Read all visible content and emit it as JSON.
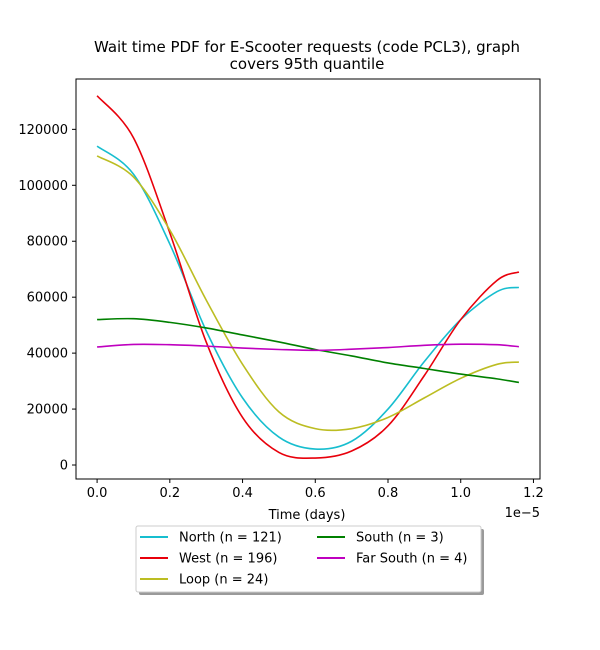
{
  "chart_data": {
    "type": "line",
    "title_line1": "Wait time PDF for E-Scooter  requests (code PCL3), graph",
    "title_line2": "covers 95th quantile",
    "xlabel": "Time (days)",
    "x_offset_text": "1e−5",
    "ylabel": "",
    "xlim": [
      -0.058,
      1.218
    ],
    "ylim": [
      -5000,
      138000
    ],
    "x_ticks": [
      0.0,
      0.2,
      0.4,
      0.6,
      0.8,
      1.0,
      1.2
    ],
    "x_tick_labels": [
      "0.0",
      "0.2",
      "0.4",
      "0.6",
      "0.8",
      "1.0",
      "1.2"
    ],
    "y_ticks": [
      0,
      20000,
      40000,
      60000,
      80000,
      100000,
      120000
    ],
    "y_tick_labels": [
      "0",
      "20000",
      "40000",
      "60000",
      "80000",
      "100000",
      "120000"
    ],
    "x": [
      0.0,
      0.1,
      0.2,
      0.3,
      0.4,
      0.5,
      0.6,
      0.7,
      0.8,
      0.9,
      1.0,
      1.1,
      1.16
    ],
    "series": [
      {
        "name": "North (n = 121)",
        "color": "#17becf",
        "values": [
          114000,
          104000,
          79000,
          48000,
          24000,
          10000,
          5700,
          8500,
          20000,
          37000,
          52000,
          62000,
          63500
        ]
      },
      {
        "name": "West (n = 196)",
        "color": "#e8000b",
        "values": [
          132000,
          117000,
          83000,
          44000,
          17000,
          4500,
          2500,
          5000,
          14000,
          32000,
          52000,
          66000,
          69000
        ]
      },
      {
        "name": "Loop (n = 24)",
        "color": "#bcbd22",
        "values": [
          110500,
          103000,
          84000,
          59000,
          36000,
          19000,
          13000,
          13000,
          17000,
          24000,
          31000,
          36000,
          36800
        ]
      },
      {
        "name": "South (n = 3)",
        "color": "#008000",
        "values": [
          52000,
          52300,
          51000,
          49000,
          46500,
          44000,
          41300,
          39000,
          36500,
          34500,
          32500,
          30800,
          29500
        ]
      },
      {
        "name": "Far South (n = 4)",
        "color": "#bf00bf",
        "values": [
          42200,
          43100,
          43000,
          42500,
          41800,
          41300,
          41000,
          41400,
          42000,
          42800,
          43200,
          43000,
          42300
        ]
      }
    ],
    "legend_placement": "below-center",
    "grid": false
  }
}
